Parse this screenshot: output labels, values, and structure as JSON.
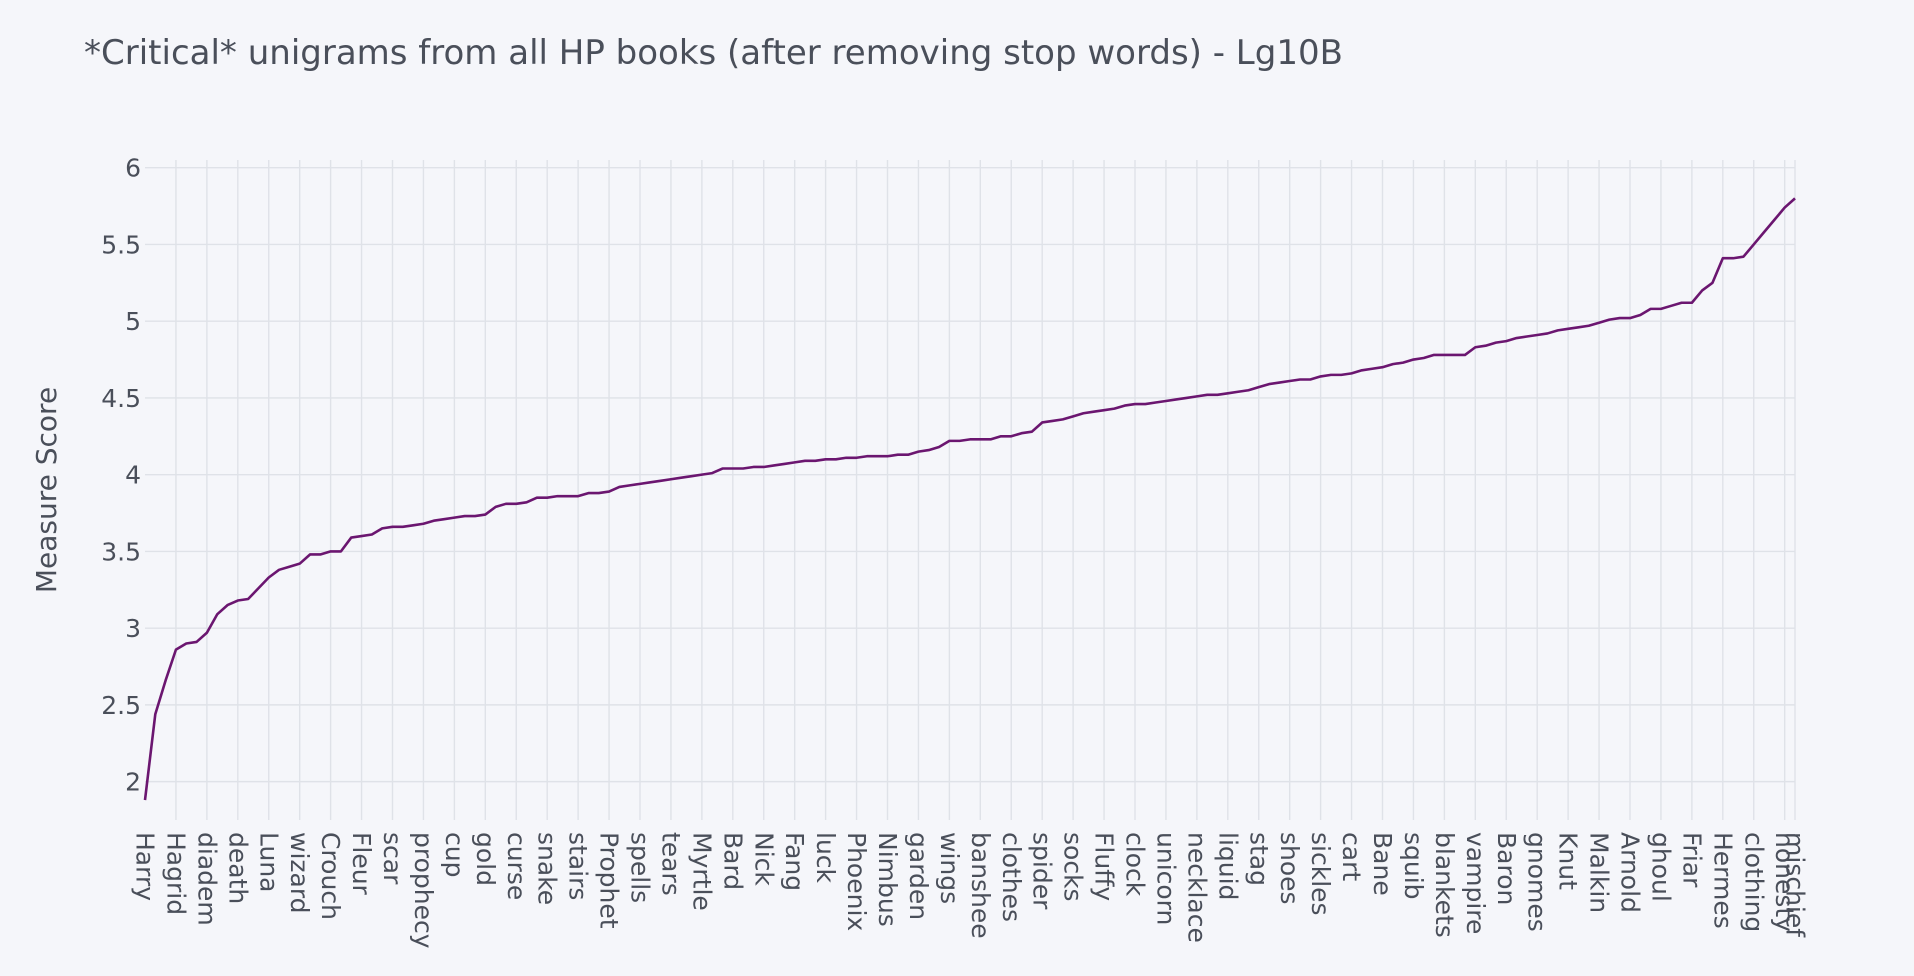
{
  "chart_data": {
    "type": "line",
    "title": "*Critical* unigrams from all HP books (after removing stop words) - Lg10B",
    "xlabel": "",
    "ylabel": "Measure Score",
    "ylim": [
      1.75,
      6.05
    ],
    "yticks": [
      2,
      2.5,
      3,
      3.5,
      4,
      4.5,
      5,
      5.5,
      6
    ],
    "grid": true,
    "legend": "none",
    "line_color": "#6b1670",
    "xticks": [
      "Harry",
      "Hagrid",
      "diadem",
      "death",
      "Luna",
      "wizard",
      "Crouch",
      "Fleur",
      "scar",
      "prophecy",
      "cup",
      "gold",
      "curse",
      "snake",
      "stairs",
      "Prophet",
      "spells",
      "tears",
      "Myrtle",
      "Bard",
      "Nick",
      "Fang",
      "luck",
      "Phoenix",
      "Nimbus",
      "garden",
      "wings",
      "banshee",
      "clothes",
      "spider",
      "socks",
      "Fluffy",
      "clock",
      "unicorn",
      "necklace",
      "liquid",
      "stag",
      "shoes",
      "sickles",
      "cart",
      "Bane",
      "squib",
      "blankets",
      "vampire",
      "Baron",
      "gnomes",
      "Knut",
      "Malkin",
      "Arnold",
      "ghoul",
      "Friar",
      "Hermes",
      "clothing",
      "honesty",
      "mischief"
    ],
    "values": [
      1.88,
      2.44,
      2.66,
      2.86,
      2.9,
      2.91,
      2.97,
      3.09,
      3.15,
      3.18,
      3.19,
      3.26,
      3.33,
      3.38,
      3.4,
      3.42,
      3.48,
      3.48,
      3.5,
      3.5,
      3.59,
      3.6,
      3.61,
      3.65,
      3.66,
      3.66,
      3.67,
      3.68,
      3.7,
      3.71,
      3.72,
      3.73,
      3.73,
      3.74,
      3.79,
      3.81,
      3.81,
      3.82,
      3.85,
      3.85,
      3.86,
      3.86,
      3.86,
      3.88,
      3.88,
      3.89,
      3.92,
      3.93,
      3.94,
      3.95,
      3.96,
      3.97,
      3.98,
      3.99,
      4.0,
      4.01,
      4.04,
      4.04,
      4.04,
      4.05,
      4.05,
      4.06,
      4.07,
      4.08,
      4.09,
      4.09,
      4.1,
      4.1,
      4.11,
      4.11,
      4.12,
      4.12,
      4.12,
      4.13,
      4.13,
      4.15,
      4.16,
      4.18,
      4.22,
      4.22,
      4.23,
      4.23,
      4.23,
      4.25,
      4.25,
      4.27,
      4.28,
      4.34,
      4.35,
      4.36,
      4.38,
      4.4,
      4.41,
      4.42,
      4.43,
      4.45,
      4.46,
      4.46,
      4.47,
      4.48,
      4.49,
      4.5,
      4.51,
      4.52,
      4.52,
      4.53,
      4.54,
      4.55,
      4.57,
      4.59,
      4.6,
      4.61,
      4.62,
      4.62,
      4.64,
      4.65,
      4.65,
      4.66,
      4.68,
      4.69,
      4.7,
      4.72,
      4.73,
      4.75,
      4.76,
      4.78,
      4.78,
      4.78,
      4.78,
      4.83,
      4.84,
      4.86,
      4.87,
      4.89,
      4.9,
      4.91,
      4.92,
      4.94,
      4.95,
      4.96,
      4.97,
      4.99,
      5.01,
      5.02,
      5.02,
      5.04,
      5.08,
      5.08,
      5.1,
      5.12,
      5.12,
      5.2,
      5.25,
      5.41,
      5.41,
      5.42,
      5.5,
      5.58,
      5.66,
      5.74,
      5.8
    ]
  }
}
